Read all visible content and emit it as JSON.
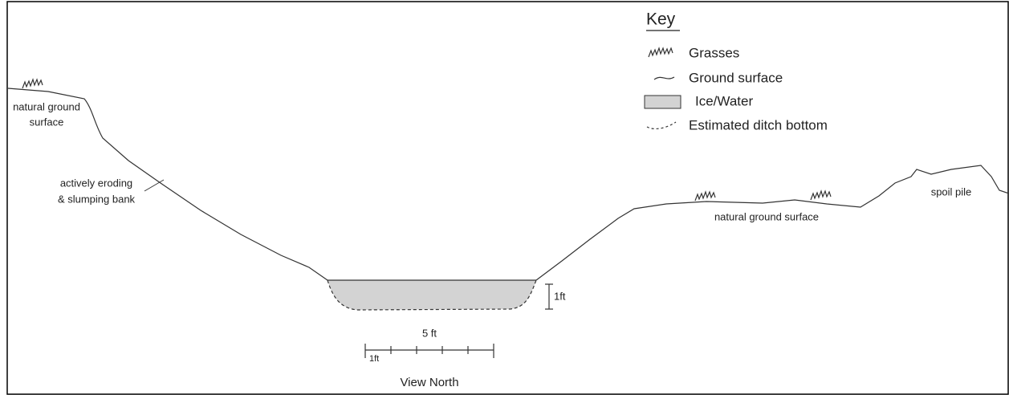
{
  "key": {
    "title": "Key",
    "items": [
      "Grasses",
      "Ground surface",
      "Ice/Water",
      "Estimated ditch bottom"
    ]
  },
  "labels": {
    "left_ground": [
      "natural ground",
      "surface"
    ],
    "bank": [
      "actively eroding",
      "& slumping bank"
    ],
    "right_ground": "natural ground surface",
    "spoil": "spoil pile"
  },
  "scale": {
    "vertical": "1ft",
    "horizontal_total": "5 ft",
    "horizontal_unit": "1ft",
    "view": "View North"
  }
}
